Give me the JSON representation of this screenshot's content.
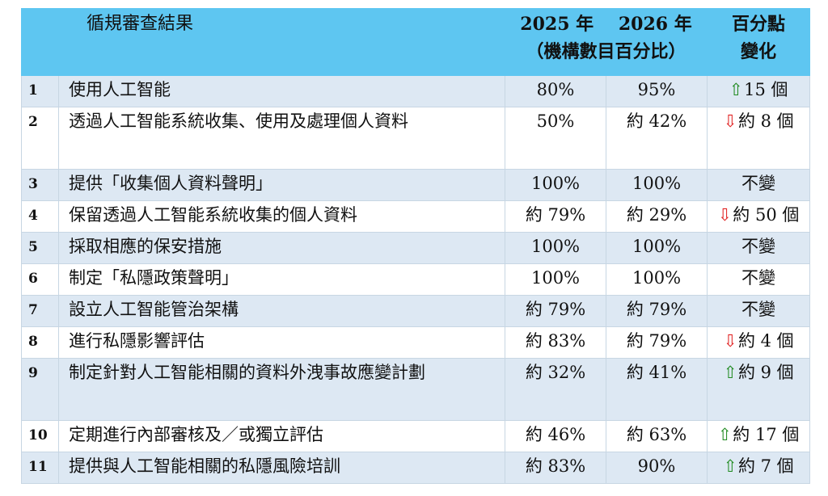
{
  "table": {
    "header": {
      "item": "循規審查結果",
      "year2025": "2025 年",
      "year2026": "2026 年",
      "subtitle": "（機構數目百分比）",
      "change_line1": "百分點",
      "change_line2": "變化"
    },
    "rows": [
      {
        "num": "1",
        "item": "使用人工智能",
        "y2025": "80%",
        "y2026": "95%",
        "change": "15 個",
        "dir": "up"
      },
      {
        "num": "2",
        "item": "透過人工智能系統收集、使用及處理個人資料",
        "y2025": "50%",
        "y2026": "約 42%",
        "change": "約 8 個",
        "dir": "down"
      },
      {
        "num": "3",
        "item": "提供「收集個人資料聲明」",
        "y2025": "100%",
        "y2026": "100%",
        "change": "不變",
        "dir": "none"
      },
      {
        "num": "4",
        "item": "保留透過人工智能系統收集的個人資料",
        "y2025": "約 79%",
        "y2026": "約 29%",
        "change": "約 50 個",
        "dir": "down"
      },
      {
        "num": "5",
        "item": "採取相應的保安措施",
        "y2025": "100%",
        "y2026": "100%",
        "change": "不變",
        "dir": "none"
      },
      {
        "num": "6",
        "item": "制定「私隱政策聲明」",
        "y2025": "100%",
        "y2026": "100%",
        "change": "不變",
        "dir": "none"
      },
      {
        "num": "7",
        "item": "設立人工智能管治架構",
        "y2025": "約 79%",
        "y2026": "約 79%",
        "change": "不變",
        "dir": "none"
      },
      {
        "num": "8",
        "item": "進行私隱影響評估",
        "y2025": "約 83%",
        "y2026": "約 79%",
        "change": "約 4 個",
        "dir": "down"
      },
      {
        "num": "9",
        "item": "制定針對人工智能相關的資料外洩事故應變計劃",
        "y2025": "約 32%",
        "y2026": "約 41%",
        "change": "約 9 個",
        "dir": "up"
      },
      {
        "num": "10",
        "item": "定期進行內部審核及／或獨立評估",
        "y2025": "約 46%",
        "y2026": "約 63%",
        "change": "約 17 個",
        "dir": "up"
      },
      {
        "num": "11",
        "item": "提供與人工智能相關的私隱風險培訓",
        "y2025": "約 83%",
        "y2026": "90%",
        "change": "約 7 個",
        "dir": "up"
      }
    ],
    "colors": {
      "header_bg": "#5ec6f1",
      "stripe_bg": "#dde8f3",
      "up_arrow": "#1f8a1f",
      "down_arrow": "#e02020"
    },
    "icons": {
      "up": "up-arrow-icon",
      "down": "down-arrow-icon"
    }
  }
}
